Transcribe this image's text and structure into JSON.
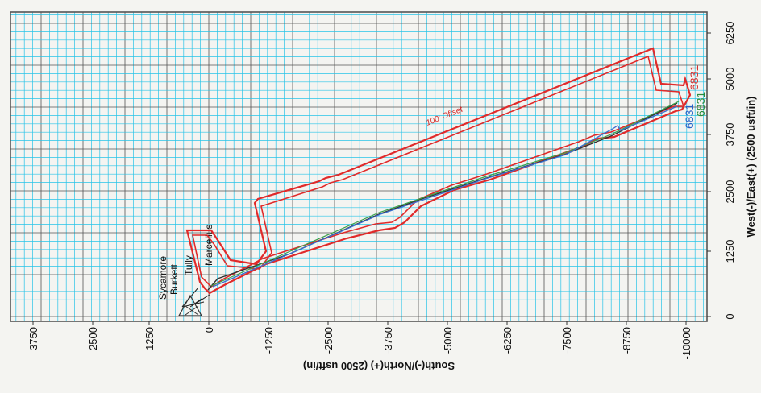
{
  "plot": {
    "x_axis_title": "South(-)/North(+) (2500 usft/in)",
    "y_axis_title": "West(-)/East(+) (2500 usft/in)",
    "x_ticks": [
      "3750",
      "2500",
      "1250",
      "0",
      "-1250",
      "-2500",
      "-3750",
      "-5000",
      "-6250",
      "-7500",
      "-8750",
      "-10000"
    ],
    "y_ticks": [
      "6250",
      "5000",
      "3750",
      "2500",
      "1250",
      "0"
    ],
    "formations": [
      "Sycamore",
      "Burkett",
      "Tully",
      "Marcellus"
    ],
    "offset_label": "100' Offset",
    "well_labels": [
      {
        "text": "6831",
        "color": "#d32f2f"
      },
      {
        "text": "6831",
        "color": "#2a8a3a"
      },
      {
        "text": "6831",
        "color": "#2563c9"
      }
    ],
    "colors": {
      "background": "#f4f4f1",
      "grid_minor": "#27c3e8",
      "grid_major": "#555555",
      "offset": "#e02a2a",
      "path_dark": "#333333",
      "path_green": "#3aa04a",
      "path_blue": "#3a6fd0"
    }
  }
}
